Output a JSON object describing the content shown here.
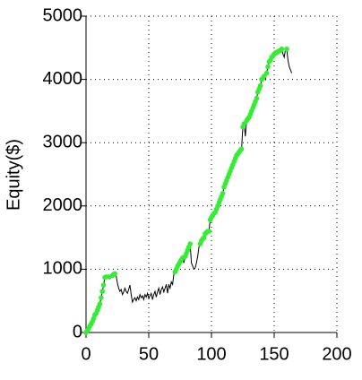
{
  "chart_data": {
    "type": "line",
    "ylabel": "Equity($)",
    "x": [
      0,
      1,
      2,
      3,
      4,
      5,
      6,
      7,
      8,
      9,
      10,
      11,
      12,
      13,
      14,
      15,
      16,
      17,
      18,
      19,
      20,
      21,
      22,
      23,
      24,
      25,
      26,
      27,
      28,
      29,
      30,
      31,
      32,
      33,
      34,
      35,
      36,
      37,
      38,
      39,
      40,
      41,
      42,
      43,
      44,
      45,
      46,
      47,
      48,
      49,
      50,
      51,
      52,
      53,
      54,
      55,
      56,
      57,
      58,
      59,
      60,
      61,
      62,
      63,
      64,
      65,
      66,
      67,
      68,
      69,
      70,
      71,
      72,
      73,
      74,
      75,
      76,
      77,
      78,
      79,
      80,
      81,
      82,
      83,
      84,
      85,
      86,
      87,
      88,
      89,
      90,
      91,
      92,
      93,
      94,
      95,
      96,
      97,
      98,
      99,
      100,
      101,
      102,
      103,
      104,
      105,
      106,
      107,
      108,
      109,
      110,
      111,
      112,
      113,
      114,
      115,
      116,
      117,
      118,
      119,
      120,
      121,
      122,
      123,
      124,
      125,
      126,
      127,
      128,
      129,
      130,
      131,
      132,
      133,
      134,
      135,
      136,
      137,
      138,
      139,
      140,
      141,
      142,
      143,
      144,
      145,
      146,
      147,
      148,
      149,
      150,
      151,
      152,
      153,
      154,
      155,
      156,
      157,
      158,
      159,
      160,
      161,
      162,
      163,
      164
    ],
    "series": [
      {
        "color": "#000000",
        "marker_color": "#33ee33",
        "values": [
          0,
          30,
          60,
          100,
          130,
          170,
          220,
          280,
          300,
          350,
          400,
          450,
          550,
          650,
          750,
          870,
          880,
          860,
          880,
          850,
          870,
          900,
          920,
          930,
          900,
          780,
          700,
          650,
          680,
          600,
          640,
          700,
          650,
          620,
          680,
          750,
          600,
          480,
          520,
          550,
          500,
          560,
          520,
          600,
          550,
          580,
          520,
          600,
          560,
          620,
          540,
          580,
          620,
          520,
          600,
          650,
          560,
          640,
          700,
          600,
          680,
          720,
          640,
          700,
          760,
          620,
          760,
          700,
          800,
          760,
          920,
          960,
          1000,
          1050,
          1080,
          1120,
          1150,
          1180,
          1100,
          1200,
          1250,
          1300,
          1350,
          1400,
          1100,
          1050,
          1000,
          1020,
          1100,
          1200,
          1350,
          1400,
          1450,
          1480,
          1500,
          1560,
          1580,
          1600,
          1600,
          1780,
          1820,
          1850,
          1880,
          1900,
          1950,
          2000,
          2050,
          2100,
          2150,
          2200,
          2300,
          2350,
          2400,
          2450,
          2500,
          2550,
          2600,
          2650,
          2700,
          2750,
          2800,
          2820,
          2850,
          2880,
          2900,
          3250,
          3300,
          3100,
          3350,
          3380,
          3400,
          3450,
          3500,
          3550,
          3600,
          3650,
          3700,
          3800,
          3850,
          3900,
          4000,
          4020,
          4050,
          4000,
          4100,
          4200,
          4280,
          4300,
          4350,
          4370,
          4400,
          4420,
          4420,
          4440,
          4450,
          4460,
          4480,
          4400,
          4350,
          4470,
          4480,
          4300,
          4200,
          4150,
          4100
        ]
      }
    ],
    "xlim": [
      0,
      200
    ],
    "xticks": [
      0,
      50,
      100,
      150,
      200
    ],
    "ylim": [
      0,
      5000
    ],
    "yticks": [
      0,
      1000,
      2000,
      3000,
      4000,
      5000
    ],
    "grid": true
  }
}
